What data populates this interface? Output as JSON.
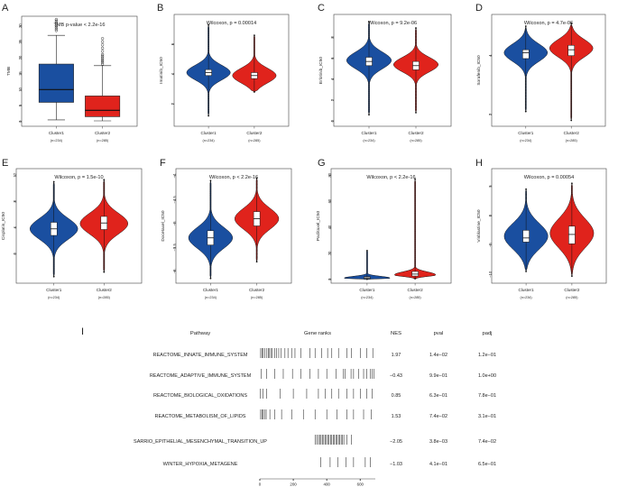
{
  "colors": {
    "cluster1": "#1a4fa0",
    "cluster2": "#e0231c",
    "axis": "#444444",
    "tick": "#333333"
  },
  "panels": [
    {
      "letter": "A",
      "kind": "box",
      "title": "TMB p-value < 2.2e-16",
      "ylabel": "TMB",
      "yticks": [
        0,
        5,
        10,
        15,
        20,
        25,
        30
      ],
      "ylim": [
        -1.5,
        33
      ],
      "groups": [
        {
          "name": "Cluster1",
          "n": "(n=234)",
          "min": 0.5,
          "q1": 6,
          "median": 10,
          "q3": 18,
          "max": 27,
          "outliers": [
            28.5,
            29,
            29.5,
            30,
            30.5,
            31,
            31.5,
            32
          ]
        },
        {
          "name": "Cluster2",
          "n": "(n=285)",
          "min": 0.2,
          "q1": 1.5,
          "median": 3.5,
          "q3": 8,
          "max": 17.5,
          "outliers": [
            18,
            18.5,
            19,
            19.5,
            20,
            20.5,
            21,
            22,
            23,
            24,
            25,
            26
          ]
        }
      ]
    },
    {
      "letter": "B",
      "kind": "violin",
      "title": "Wilcoxon, p = 0.00014",
      "ylabel": "Imatinib_IC50",
      "yticks": [
        2,
        4,
        6
      ],
      "ylim": [
        0.5,
        8.0
      ],
      "groups": [
        {
          "name": "Cluster1",
          "n": "(n=234)",
          "min": 1.2,
          "max": 7.3,
          "q1": 3.9,
          "median": 4.1,
          "q3": 4.3,
          "mode": 4.1,
          "spread": 0.5
        },
        {
          "name": "Cluster2",
          "n": "(n=285)",
          "min": 2.8,
          "max": 6.6,
          "q1": 3.7,
          "median": 3.9,
          "q3": 4.1,
          "mode": 3.9,
          "spread": 0.5
        }
      ]
    },
    {
      "letter": "C",
      "kind": "violin",
      "title": "Wilcoxon, p = 9.2e-06",
      "ylabel": "Erlotinib_IC50",
      "yticks": [
        0,
        2,
        4,
        6,
        8
      ],
      "ylim": [
        -0.5,
        10.2
      ],
      "groups": [
        {
          "name": "Cluster1",
          "n": "(n=234)",
          "min": 0.6,
          "max": 9.5,
          "q1": 5.3,
          "median": 5.7,
          "q3": 6.1,
          "mode": 5.8,
          "spread": 0.8
        },
        {
          "name": "Cluster2",
          "n": "(n=285)",
          "min": 0.8,
          "max": 8.9,
          "q1": 4.9,
          "median": 5.3,
          "q3": 5.7,
          "mode": 5.4,
          "spread": 0.7
        }
      ]
    },
    {
      "letter": "D",
      "kind": "violin",
      "title": "Wilcoxon, p = 4.7e-06",
      "ylabel": "Sorafenib_IC50",
      "yticks": [
        2,
        4
      ],
      "ylim": [
        1.6,
        5.4
      ],
      "groups": [
        {
          "name": "Cluster1",
          "n": "(n=234)",
          "min": 2.1,
          "max": 5.0,
          "q1": 3.9,
          "median": 4.1,
          "q3": 4.2,
          "mode": 4.1,
          "spread": 0.3
        },
        {
          "name": "Cluster2",
          "n": "(n=285)",
          "min": 1.8,
          "max": 5.1,
          "q1": 4.0,
          "median": 4.2,
          "q3": 4.35,
          "mode": 4.25,
          "spread": 0.3
        }
      ]
    },
    {
      "letter": "E",
      "kind": "violin",
      "title": "Wilcoxon, p = 1.5e-10",
      "ylabel": "Cisplatin_IC50",
      "yticks": [
        0,
        4,
        8,
        12
      ],
      "ylim": [
        -4.5,
        13
      ],
      "groups": [
        {
          "name": "Cluster1",
          "n": "(n=234)",
          "min": -3.5,
          "max": 11.0,
          "q1": 2.8,
          "median": 3.8,
          "q3": 4.8,
          "mode": 3.8,
          "spread": 1.6
        },
        {
          "name": "Cluster2",
          "n": "(n=285)",
          "min": -2.8,
          "max": 11.3,
          "q1": 3.7,
          "median": 4.7,
          "q3": 5.7,
          "mode": 4.6,
          "spread": 1.6
        }
      ]
    },
    {
      "letter": "F",
      "kind": "violin",
      "title": "Wilcoxon, p < 2.2e-16",
      "ylabel": "Docetaxel_IC50",
      "yticks": [
        -6.0,
        -5.5,
        -5.0,
        -4.5,
        -4.0
      ],
      "ylim": [
        -6.25,
        -3.85
      ],
      "groups": [
        {
          "name": "Cluster1",
          "n": "(n=234)",
          "min": -6.15,
          "max": -4.1,
          "q1": -5.45,
          "median": -5.3,
          "q3": -5.15,
          "mode": -5.3,
          "spread": 0.22
        },
        {
          "name": "Cluster2",
          "n": "(n=285)",
          "min": -5.8,
          "max": -4.05,
          "q1": -5.05,
          "median": -4.9,
          "q3": -4.75,
          "mode": -4.9,
          "spread": 0.22
        }
      ]
    },
    {
      "letter": "G",
      "kind": "violin",
      "title": "Wilcoxon, p < 2.2e-16",
      "ylabel": "Paclitaxel_IC50",
      "yticks": [
        0,
        20,
        40,
        60,
        80
      ],
      "ylim": [
        -3,
        85
      ],
      "groups": [
        {
          "name": "Cluster1",
          "n": "(n=234)",
          "min": 0,
          "max": 22,
          "q1": 0.5,
          "median": 1.2,
          "q3": 2.0,
          "mode": 1.0,
          "spread": 1.3,
          "maxw": 0.6
        },
        {
          "name": "Cluster2",
          "n": "(n=285)",
          "min": 0.5,
          "max": 77,
          "q1": 2.5,
          "median": 4.0,
          "q3": 6.0,
          "mode": 3.5,
          "spread": 2.2,
          "maxw": 0.45
        }
      ]
    },
    {
      "letter": "H",
      "kind": "violin",
      "title": "Wilcoxon, p = 0.00054",
      "ylabel": "Vinblastine_IC50",
      "yticks": [
        -10,
        -5,
        0,
        5
      ],
      "ylim": [
        -11.5,
        8
      ],
      "groups": [
        {
          "name": "Cluster1",
          "n": "(n=234)",
          "min": -9.5,
          "max": 4.5,
          "q1": -4.5,
          "median": -3.8,
          "q3": -2.5,
          "mode": -3.5,
          "spread": 2.2
        },
        {
          "name": "Cluster2",
          "n": "(n=285)",
          "min": -10.3,
          "max": 5.5,
          "q1": -4.8,
          "median": -3.2,
          "q3": -1.8,
          "mode": -3.0,
          "spread": 2.5
        }
      ]
    }
  ],
  "gsea": {
    "letter": "I",
    "headers": {
      "pathway": "Pathway",
      "ranks": "Gene ranks",
      "nes": "NES",
      "pval": "pval",
      "padj": "padj"
    },
    "rank_axis": {
      "ticks": [
        0,
        200,
        400,
        600
      ],
      "max": 690
    },
    "rows": [
      {
        "pathway": "REACTOME_INNATE_IMMUNE_SYSTEM",
        "nes": "1.97",
        "pval": "1.4e−02",
        "padj": "1.2e−01",
        "hits": [
          5,
          12,
          18,
          30,
          42,
          50,
          58,
          66,
          75,
          88,
          100,
          113,
          128,
          150,
          168,
          190,
          210,
          245,
          300,
          330,
          368,
          405,
          430,
          470,
          520,
          548,
          600,
          640,
          675
        ]
      },
      {
        "pathway": "REACTOME_ADAPTIVE_IMMUNE_SYSTEM",
        "nes": "−0.43",
        "pval": "9.9e−01",
        "padj": "1.0e+00",
        "hits": [
          8,
          40,
          90,
          140,
          195,
          245,
          300,
          350,
          400,
          455,
          500,
          510,
          545,
          560,
          590,
          620,
          640,
          660,
          672,
          683
        ]
      },
      {
        "pathway": "REACTOME_BIOLOGICAL_OXIDATIONS",
        "nes": "0.85",
        "pval": "6.3e−01",
        "padj": "7.8e−01",
        "hits": [
          4,
          20,
          40,
          120,
          200,
          280,
          350,
          390,
          430,
          470,
          520,
          560,
          600,
          640,
          670
        ]
      },
      {
        "pathway": "REACTOME_METABOLISM_OF_LIPIDS",
        "nes": "1.53",
        "pval": "7.4e−02",
        "padj": "3.1e−01",
        "hits": [
          5,
          12,
          20,
          28,
          38,
          60,
          90,
          130,
          190,
          260,
          330,
          400,
          460,
          520,
          560,
          620,
          665
        ]
      },
      {
        "pathway": "SARRIO_EPITHELIAL_MESENCHYMAL_TRANSITION_UP",
        "nes": "−2.05",
        "pval": "3.8e−03",
        "padj": "7.4e−02",
        "hits": [
          330,
          340,
          350,
          358,
          366,
          374,
          382,
          390,
          398,
          406,
          414,
          422,
          430,
          438,
          446,
          454,
          462,
          470,
          478,
          486,
          494,
          502,
          520,
          548
        ]
      },
      {
        "pathway": "WINTER_HYPOXIA_METAGENE",
        "nes": "−1.03",
        "pval": "4.1e−01",
        "padj": "6.5e−01",
        "hits": [
          365,
          420,
          465,
          515,
          560,
          630,
          660
        ]
      }
    ]
  }
}
